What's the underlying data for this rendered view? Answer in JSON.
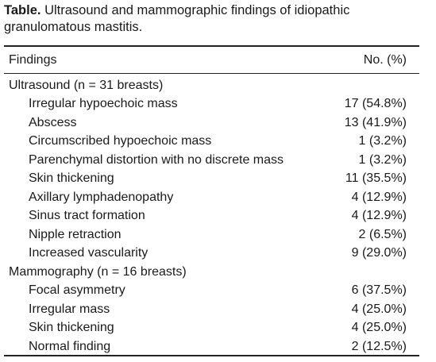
{
  "caption": {
    "label": "Table.",
    "text": "Ultrasound and mammographic findings of idiopathic granulomatous mastitis."
  },
  "table": {
    "header": [
      "Findings",
      "No. (%)"
    ],
    "sections": [
      {
        "title": "Ultrasound (n = 31 breasts)",
        "rows": [
          [
            "Irregular hypoechoic mass",
            "17 (54.8%)"
          ],
          [
            "Abscess",
            "13 (41.9%)"
          ],
          [
            "Circumscribed hypoechoic mass",
            "1 (3.2%)"
          ],
          [
            "Parenchymal distortion with no discrete mass",
            "1 (3.2%)"
          ],
          [
            "Skin thickening",
            "11 (35.5%)"
          ],
          [
            "Axillary lymphadenopathy",
            "4 (12.9%)"
          ],
          [
            "Sinus tract formation",
            "4 (12.9%)"
          ],
          [
            "Nipple retraction",
            "2 (6.5%)"
          ],
          [
            "Increased vascularity",
            "9 (29.0%)"
          ]
        ]
      },
      {
        "title": "Mammography (n = 16 breasts)",
        "rows": [
          [
            "Focal asymmetry",
            "6 (37.5%)"
          ],
          [
            "Irregular mass",
            "4 (25.0%)"
          ],
          [
            "Skin thickening",
            "4 (25.0%)"
          ],
          [
            "Normal finding",
            "2 (12.5%)"
          ]
        ]
      }
    ]
  }
}
